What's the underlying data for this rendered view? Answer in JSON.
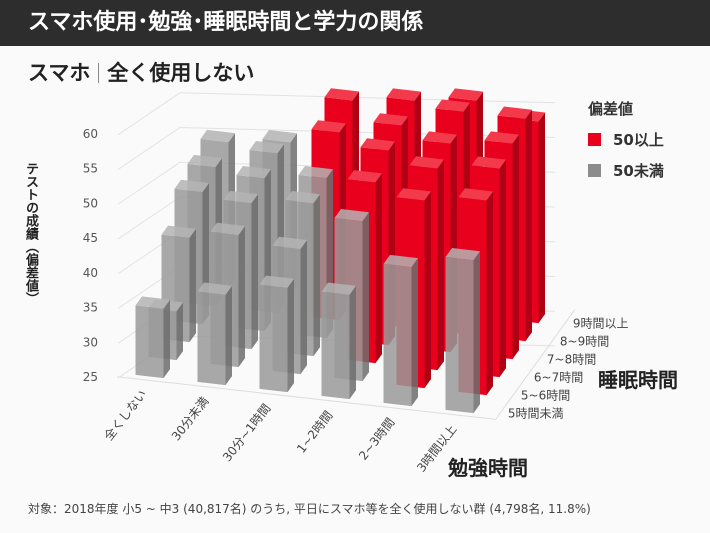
{
  "header": {
    "title": "スマホ使用･勉強･睡眠時間と学力の関係"
  },
  "subtitle": {
    "left": "スマホ",
    "right": "全く使用しない"
  },
  "footnote": "対象：2018年度 小5 ~ 中3 (40,817名) のうち, 平日にスマホ等を全く使用しない群 (4,798名, 11.8%)",
  "chart_data": {
    "type": "bar3d",
    "ylabel": "テストの成績（偏差値）",
    "xlabel": "勉強時間",
    "zlabel": "睡眠時間",
    "ylim": [
      25,
      60
    ],
    "yticks": [
      "25",
      "30",
      "35",
      "40",
      "45",
      "50",
      "55",
      "60"
    ],
    "x_categories": [
      "全くしない",
      "30分未満",
      "30分~1時間",
      "1~2時間",
      "2~3時間",
      "3時間以上"
    ],
    "z_categories": [
      "5時間未満",
      "5~6時間",
      "6~7時間",
      "7~8時間",
      "8~9時間",
      "9時間以上"
    ],
    "values": [
      [
        35,
        32,
        40,
        44,
        45,
        46
      ],
      [
        38,
        44,
        46,
        47,
        48,
        47
      ],
      [
        40,
        43,
        47,
        48,
        52,
        54
      ],
      [
        40,
        48,
        51,
        53,
        54,
        55
      ],
      [
        45,
        52,
        54,
        55,
        57,
        56
      ],
      [
        47,
        53,
        55,
        56,
        57,
        54
      ]
    ],
    "values_note_axes": "values[study_index][sleep_index]",
    "legend": {
      "title": "偏差値",
      "items": [
        {
          "label": "50以上",
          "color": "#e8001c"
        },
        {
          "label": "50未満",
          "color": "#8c8c8c"
        }
      ],
      "placement": "top-right"
    },
    "threshold": 50
  }
}
